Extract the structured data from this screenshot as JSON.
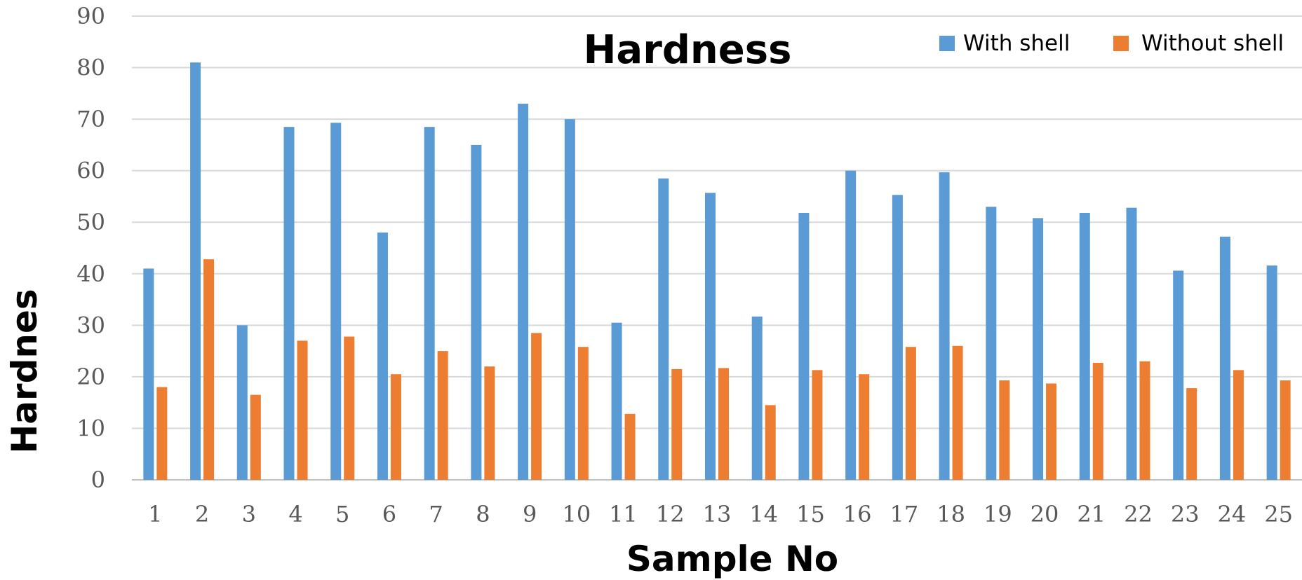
{
  "chart_data": {
    "type": "bar",
    "title": "Hardness",
    "xlabel": "Sample No",
    "ylabel": "Hardnes",
    "ylim": [
      0,
      90
    ],
    "yticks": [
      0,
      10,
      20,
      30,
      40,
      50,
      60,
      70,
      80,
      90
    ],
    "grid": true,
    "legend_position": "top-right",
    "categories": [
      "1",
      "2",
      "3",
      "4",
      "5",
      "6",
      "7",
      "8",
      "9",
      "10",
      "11",
      "12",
      "13",
      "14",
      "15",
      "16",
      "17",
      "18",
      "19",
      "20",
      "21",
      "22",
      "23",
      "24",
      "25"
    ],
    "series": [
      {
        "name": "With shell",
        "color": "#5B9BD5",
        "values": [
          41,
          81,
          30,
          68.5,
          69.3,
          48,
          68.5,
          65,
          73,
          70,
          30.5,
          58.5,
          55.7,
          31.7,
          51.8,
          60,
          55.3,
          59.7,
          53,
          50.8,
          51.8,
          52.8,
          40.6,
          47.2,
          41.6
        ]
      },
      {
        "name": "Without shell",
        "color": "#ED7D31",
        "values": [
          18,
          42.8,
          16.5,
          27,
          27.8,
          20.5,
          25,
          22,
          28.5,
          25.8,
          12.8,
          21.5,
          21.7,
          14.5,
          21.3,
          20.5,
          25.8,
          26,
          19.3,
          18.7,
          22.7,
          23,
          17.8,
          21.3,
          19.3
        ]
      }
    ]
  }
}
